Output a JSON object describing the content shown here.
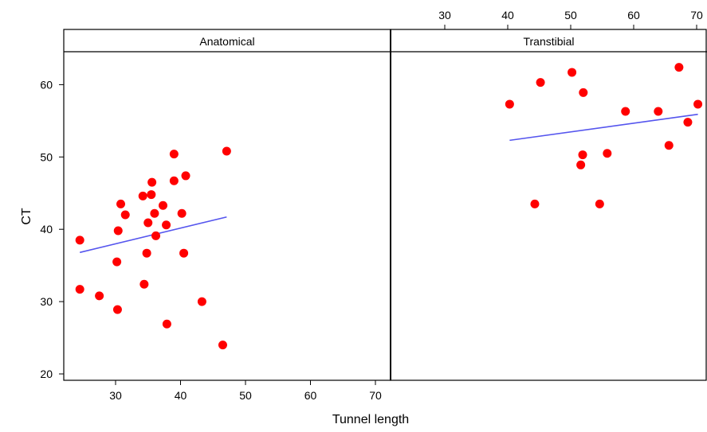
{
  "chart_data": {
    "type": "scatter",
    "xlabel": "Tunnel length",
    "ylabel": "CT",
    "xlim": [
      20,
      72
    ],
    "ylim": [
      19,
      65
    ],
    "xticks": [
      "30",
      "40",
      "50",
      "60",
      "70"
    ],
    "yticks": [
      "20",
      "30",
      "40",
      "50",
      "60"
    ],
    "point_color": "#ff0000",
    "line_color": "#5555ee",
    "panels": [
      {
        "strip_label": "Anatomical",
        "x_axis": "bottom",
        "points": [
          [
            24.5,
            38.5
          ],
          [
            24.5,
            31.7
          ],
          [
            27.5,
            30.8
          ],
          [
            30.2,
            35.5
          ],
          [
            30.3,
            28.9
          ],
          [
            30.4,
            39.8
          ],
          [
            30.8,
            43.5
          ],
          [
            31.5,
            42.0
          ],
          [
            34.2,
            44.6
          ],
          [
            34.4,
            32.4
          ],
          [
            34.8,
            36.7
          ],
          [
            35.0,
            40.9
          ],
          [
            35.5,
            44.8
          ],
          [
            35.6,
            46.5
          ],
          [
            36.0,
            42.2
          ],
          [
            36.2,
            39.1
          ],
          [
            37.3,
            43.3
          ],
          [
            37.8,
            40.6
          ],
          [
            37.9,
            26.9
          ],
          [
            39.0,
            50.4
          ],
          [
            39.0,
            46.7
          ],
          [
            40.2,
            42.2
          ],
          [
            40.5,
            36.7
          ],
          [
            40.8,
            47.4
          ],
          [
            43.3,
            30.0
          ],
          [
            46.5,
            24.0
          ],
          [
            47.1,
            50.8
          ]
        ],
        "fit_line": {
          "x": [
            24.5,
            47.1
          ],
          "y": [
            36.8,
            41.7
          ]
        }
      },
      {
        "strip_label": "Transtibial",
        "x_axis": "top",
        "points": [
          [
            40.3,
            57.3
          ],
          [
            44.3,
            43.5
          ],
          [
            45.2,
            60.3
          ],
          [
            50.2,
            61.7
          ],
          [
            51.6,
            48.9
          ],
          [
            51.9,
            50.3
          ],
          [
            52.0,
            58.9
          ],
          [
            54.6,
            43.5
          ],
          [
            55.8,
            50.5
          ],
          [
            58.7,
            56.3
          ],
          [
            63.9,
            56.3
          ],
          [
            65.6,
            51.6
          ],
          [
            67.2,
            62.4
          ],
          [
            68.6,
            54.8
          ],
          [
            70.2,
            57.3
          ]
        ],
        "fit_line": {
          "x": [
            40.3,
            70.2
          ],
          "y": [
            52.3,
            55.9
          ]
        }
      }
    ]
  }
}
